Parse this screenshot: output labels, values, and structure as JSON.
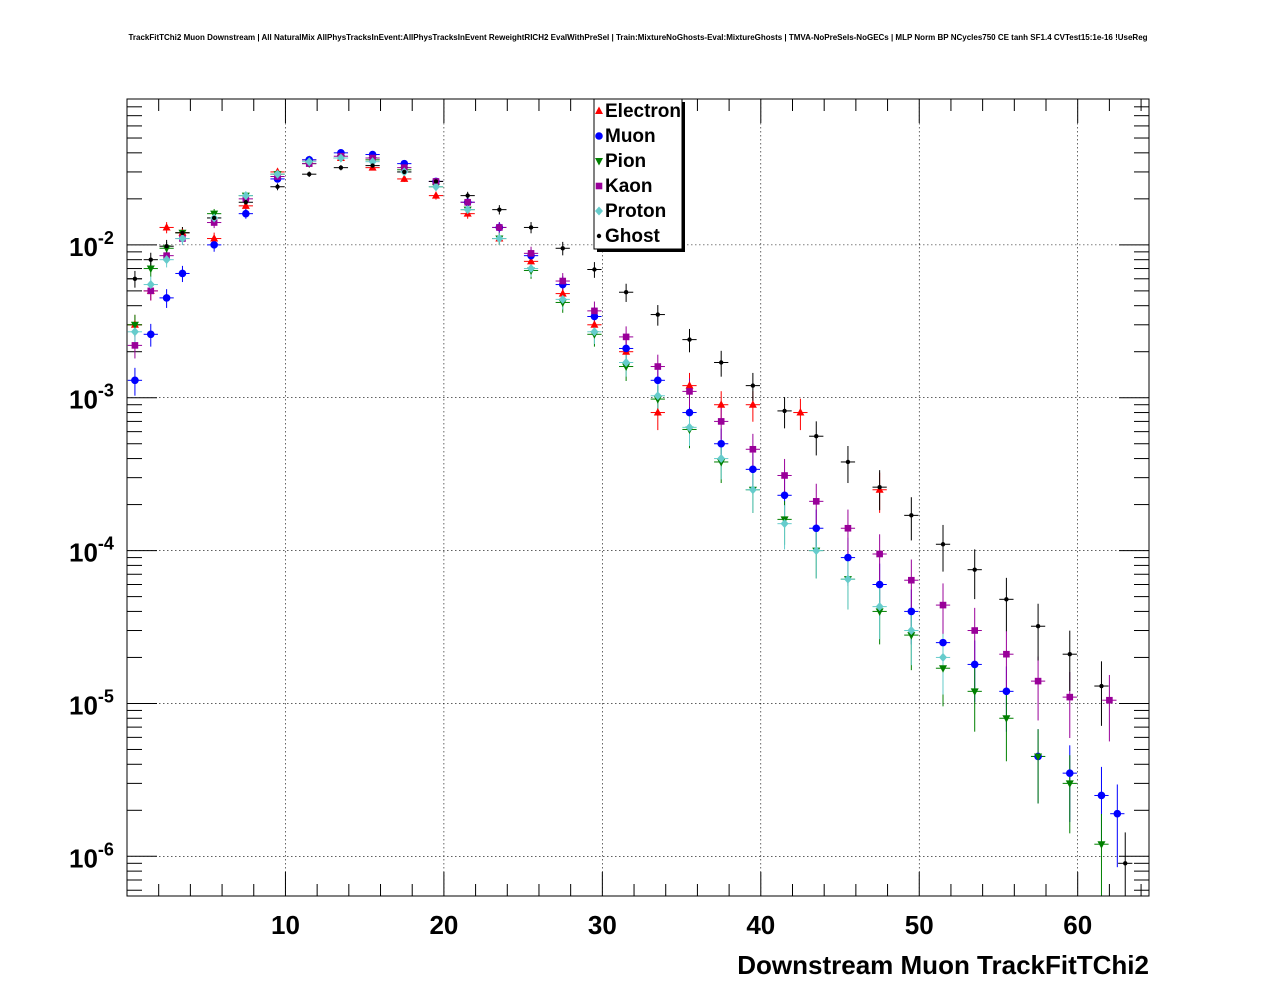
{
  "chart_data": {
    "type": "scatter",
    "title": "TrackFitTChi2 Muon Downstream | All NaturalMix AllPhysTracksInEvent:AllPhysTracksInEvent ReweightRICH2 EvalWithPreSel | Train:MixtureNoGhosts-Eval:MixtureGhosts | TMVA-NoPreSels-NoGECs | MLP Norm BP NCycles750 CE tanh SF1.4 CVTest15:1e-16 !UseReg",
    "xlabel": "Downstream Muon TrackFitTChi2",
    "ylabel": "",
    "xlim": [
      0,
      64.5
    ],
    "ylim": [
      5.5e-07,
      0.09
    ],
    "yscale": "log",
    "grid": true,
    "legend_position": "top-center",
    "x_ticks": [
      10,
      20,
      30,
      40,
      50,
      60
    ],
    "x_tick_labels": [
      "10",
      "20",
      "30",
      "40",
      "50",
      "60"
    ],
    "y_ticks": [
      1e-06,
      1e-05,
      0.0001,
      0.001,
      0.01
    ],
    "y_tick_labels": [
      {
        "base": "10",
        "exp": "-6"
      },
      {
        "base": "10",
        "exp": "-5"
      },
      {
        "base": "10",
        "exp": "-4"
      },
      {
        "base": "10",
        "exp": "-3"
      },
      {
        "base": "10",
        "exp": "-2"
      }
    ],
    "series": [
      {
        "name": "Electron",
        "color": "#ff0000",
        "marker": "triangle-up",
        "x": [
          0.5,
          1.5,
          2.5,
          3.5,
          5.5,
          7.5,
          9.5,
          11.5,
          13.5,
          15.5,
          17.5,
          19.5,
          21.5,
          23.5,
          25.5,
          27.5,
          29.5,
          31.5,
          33.5,
          35.5,
          37.5,
          39.5,
          42.5,
          47.5
        ],
        "y": [
          0.003,
          0.005,
          0.013,
          0.012,
          0.011,
          0.018,
          0.03,
          0.036,
          0.037,
          0.032,
          0.027,
          0.021,
          0.016,
          0.011,
          0.0078,
          0.0048,
          0.003,
          0.002,
          0.0008,
          0.0012,
          0.0009,
          0.0009,
          0.0008,
          0.00025
        ]
      },
      {
        "name": "Muon",
        "color": "#0000ff",
        "marker": "circle",
        "x": [
          0.5,
          1.5,
          2.5,
          3.5,
          5.5,
          7.5,
          9.5,
          11.5,
          13.5,
          15.5,
          17.5,
          19.5,
          21.5,
          23.5,
          25.5,
          27.5,
          29.5,
          31.5,
          33.5,
          35.5,
          37.5,
          39.5,
          41.5,
          43.5,
          45.5,
          47.5,
          49.5,
          51.5,
          53.5,
          55.5,
          57.5,
          59.5,
          61.5,
          62.5
        ],
        "y": [
          0.0013,
          0.0026,
          0.0045,
          0.0065,
          0.01,
          0.016,
          0.027,
          0.036,
          0.04,
          0.039,
          0.034,
          0.026,
          0.019,
          0.013,
          0.0085,
          0.0055,
          0.0034,
          0.0021,
          0.0013,
          0.0008,
          0.0005,
          0.00034,
          0.00023,
          0.00014,
          9e-05,
          6e-05,
          4e-05,
          2.5e-05,
          1.8e-05,
          1.2e-05,
          4.5e-06,
          3.5e-06,
          2.5e-06,
          1.9e-06
        ]
      },
      {
        "name": "Pion",
        "color": "#008000",
        "marker": "triangle-down",
        "x": [
          0.5,
          1.5,
          2.5,
          3.5,
          5.5,
          7.5,
          9.5,
          11.5,
          13.5,
          15.5,
          17.5,
          19.5,
          21.5,
          23.5,
          25.5,
          27.5,
          29.5,
          31.5,
          33.5,
          35.5,
          37.5,
          39.5,
          41.5,
          43.5,
          45.5,
          47.5,
          49.5,
          51.5,
          53.5,
          55.5,
          57.5,
          59.5,
          61.5
        ],
        "y": [
          0.003,
          0.007,
          0.0095,
          0.012,
          0.016,
          0.021,
          0.029,
          0.034,
          0.037,
          0.036,
          0.031,
          0.024,
          0.017,
          0.011,
          0.0068,
          0.0042,
          0.0026,
          0.0016,
          0.00098,
          0.00062,
          0.00038,
          0.00025,
          0.00016,
          0.0001,
          6.5e-05,
          4e-05,
          2.8e-05,
          1.7e-05,
          1.2e-05,
          8e-06,
          4.5e-06,
          3e-06,
          1.2e-06
        ]
      },
      {
        "name": "Kaon",
        "color": "#990099",
        "marker": "square",
        "x": [
          0.5,
          1.5,
          2.5,
          3.5,
          5.5,
          7.5,
          9.5,
          11.5,
          13.5,
          15.5,
          17.5,
          19.5,
          21.5,
          23.5,
          25.5,
          27.5,
          29.5,
          31.5,
          33.5,
          35.5,
          37.5,
          39.5,
          41.5,
          43.5,
          45.5,
          47.5,
          49.5,
          51.5,
          53.5,
          55.5,
          57.5,
          59.5,
          62.0
        ],
        "y": [
          0.0022,
          0.005,
          0.0085,
          0.011,
          0.014,
          0.02,
          0.028,
          0.034,
          0.038,
          0.037,
          0.032,
          0.026,
          0.019,
          0.013,
          0.0088,
          0.0058,
          0.0037,
          0.0025,
          0.0016,
          0.0011,
          0.0007,
          0.00046,
          0.00031,
          0.00021,
          0.00014,
          9.5e-05,
          6.4e-05,
          4.4e-05,
          3e-05,
          2.1e-05,
          1.4e-05,
          1.1e-05,
          1.05e-05
        ]
      },
      {
        "name": "Proton",
        "color": "#66cccc",
        "marker": "diamond",
        "x": [
          0.5,
          1.5,
          2.5,
          3.5,
          5.5,
          7.5,
          9.5,
          11.5,
          13.5,
          15.5,
          17.5,
          19.5,
          21.5,
          23.5,
          25.5,
          27.5,
          29.5,
          31.5,
          33.5,
          35.5,
          37.5,
          39.5,
          41.5,
          43.5,
          45.5,
          47.5,
          49.5,
          51.5
        ],
        "y": [
          0.0027,
          0.0055,
          0.008,
          0.011,
          0.015,
          0.021,
          0.029,
          0.035,
          0.037,
          0.035,
          0.03,
          0.024,
          0.017,
          0.011,
          0.007,
          0.0044,
          0.0027,
          0.0017,
          0.00103,
          0.00064,
          0.0004,
          0.00025,
          0.00015,
          0.0001,
          6.5e-05,
          4.3e-05,
          3e-05,
          2e-05
        ]
      },
      {
        "name": "Ghost",
        "color": "#000000",
        "marker": "dot",
        "x": [
          0.5,
          1.5,
          2.5,
          3.5,
          5.5,
          7.5,
          9.5,
          11.5,
          13.5,
          15.5,
          17.5,
          19.5,
          21.5,
          23.5,
          25.5,
          27.5,
          29.5,
          31.5,
          33.5,
          35.5,
          37.5,
          39.5,
          41.5,
          43.5,
          45.5,
          47.5,
          49.5,
          51.5,
          53.5,
          55.5,
          57.5,
          59.5,
          61.5,
          63.0
        ],
        "y": [
          0.006,
          0.008,
          0.0098,
          0.012,
          0.015,
          0.019,
          0.024,
          0.029,
          0.032,
          0.033,
          0.03,
          0.026,
          0.021,
          0.017,
          0.013,
          0.0095,
          0.0069,
          0.0049,
          0.0035,
          0.0024,
          0.0017,
          0.0012,
          0.00082,
          0.00056,
          0.00038,
          0.00026,
          0.00017,
          0.00011,
          7.5e-05,
          4.8e-05,
          3.2e-05,
          2.1e-05,
          1.3e-05,
          9e-07
        ]
      }
    ]
  }
}
